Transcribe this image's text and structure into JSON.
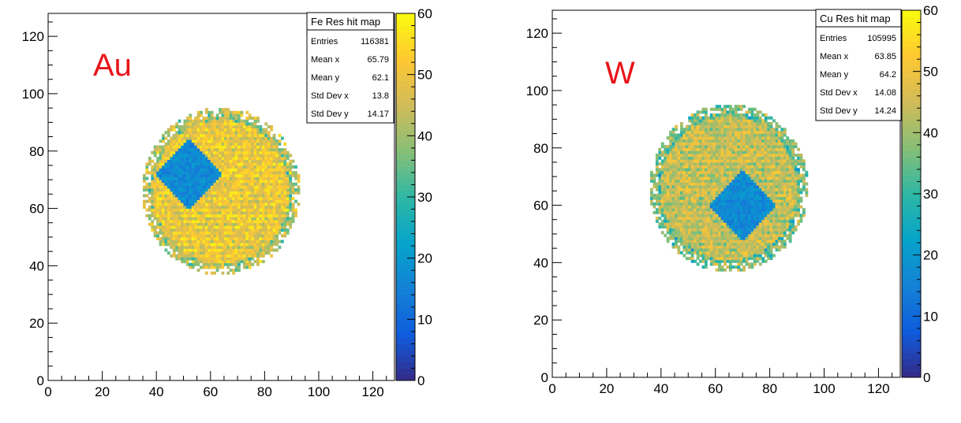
{
  "colors": {
    "overlay_text": "#e8141a",
    "palette": [
      "#352a87",
      "#0f5cdd",
      "#1481d6",
      "#06a4ca",
      "#2eb7a4",
      "#87bf77",
      "#d1bb59",
      "#fec832",
      "#f9fb0e"
    ]
  },
  "chart_data": [
    {
      "type": "heatmap",
      "title": "Fe Res hit map",
      "overlay_label": "Au",
      "xlim": [
        0,
        128
      ],
      "ylim": [
        0,
        128
      ],
      "zlim": [
        0,
        60
      ],
      "x_ticks": [
        "0",
        "20",
        "40",
        "60",
        "80",
        "100",
        "120"
      ],
      "y_ticks": [
        "0",
        "20",
        "40",
        "60",
        "80",
        "100",
        "120"
      ],
      "z_ticks": [
        "0",
        "10",
        "20",
        "30",
        "40",
        "50",
        "60"
      ],
      "stats": [
        {
          "label": "Entries",
          "value": "116381"
        },
        {
          "label": "Mean x",
          "value": "65.79"
        },
        {
          "label": "Mean y",
          "value": "62.1"
        },
        {
          "label": "Std Dev x",
          "value": "13.8"
        },
        {
          "label": "Std Dev y",
          "value": "14.17"
        }
      ],
      "disk": {
        "center": [
          64,
          66
        ],
        "radius": 28
      },
      "low_region": {
        "center": [
          52,
          72
        ],
        "half_diagonal": 13,
        "value": 17
      },
      "typical_value": 52
    },
    {
      "type": "heatmap",
      "title": "Cu Res hit map",
      "overlay_label": "W",
      "xlim": [
        0,
        128
      ],
      "ylim": [
        0,
        128
      ],
      "zlim": [
        0,
        60
      ],
      "x_ticks": [
        "0",
        "20",
        "40",
        "60",
        "80",
        "100",
        "120"
      ],
      "y_ticks": [
        "0",
        "20",
        "40",
        "60",
        "80",
        "100",
        "120"
      ],
      "z_ticks": [
        "0",
        "10",
        "20",
        "30",
        "40",
        "50",
        "60"
      ],
      "stats": [
        {
          "label": "Entries",
          "value": "105995"
        },
        {
          "label": "Mean x",
          "value": "63.85"
        },
        {
          "label": "Mean y",
          "value": "64.2"
        },
        {
          "label": "Std Dev x",
          "value": "14.08"
        },
        {
          "label": "Std Dev y",
          "value": "14.24"
        }
      ],
      "disk": {
        "center": [
          65,
          66
        ],
        "radius": 28
      },
      "low_region": {
        "center": [
          70,
          60
        ],
        "half_diagonal": 13,
        "value": 17
      },
      "typical_value": 46
    }
  ]
}
